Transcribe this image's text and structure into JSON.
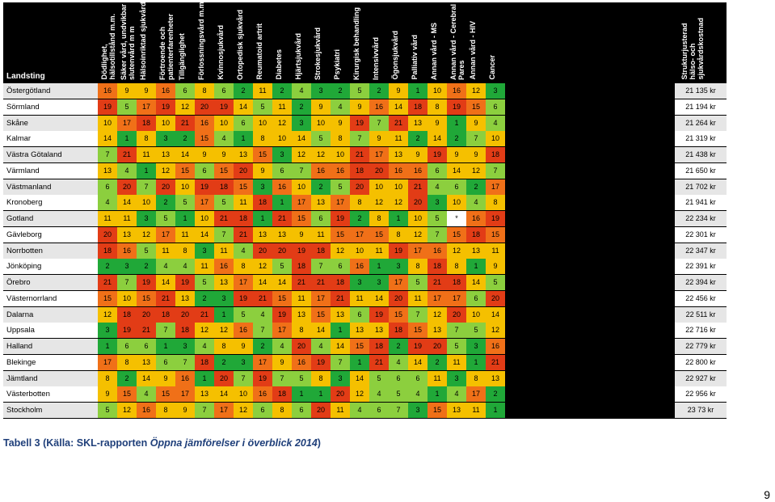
{
  "colors": {
    "1": "#20a838",
    "2": "#8ccf3e",
    "3": "#f5c000",
    "4": "#f07018",
    "5": "#e23c16",
    "white": "#ffffff"
  },
  "table": {
    "row_header_label": "Landsting",
    "column_headers": [
      "Dödlighet,\nhälsotillstånd m.m.",
      "Säker vård, undvikbar\nslutenvård m m",
      "Hälsoinriktad sjukvård",
      "Förtroende och\npatienterfarenheter",
      "Tillgänglighet",
      "Förlossningsvård m.m.",
      "Kvinnosjukvård",
      "Ortopedisk sjukvård",
      "Reumatoid artrit",
      "Diabetes",
      "Hjärtsjukvård",
      "Strokesjukvård",
      "Psykiatri",
      "Kirurgisk behandling",
      "Intensivvård",
      "Ögonsjukvård",
      "Palliativ vård",
      "Annan vård - MS",
      "Annan vård - Cerebral\nPares",
      "Annan vård - HIV",
      "Cancer",
      "Strukturjusterad\nhälso- och\nsjukvårdskostnad"
    ],
    "rows": [
      {
        "name": "Östergötland",
        "values": [
          "16",
          "9",
          "9",
          "16",
          "6",
          "8",
          "6",
          "2",
          "11",
          "2",
          "4",
          "3",
          "2",
          "5",
          "2",
          "9",
          "1",
          "10",
          "16",
          "12",
          "3"
        ],
        "cost": "21 135 kr"
      },
      {
        "name": "Sörmland",
        "values": [
          "19",
          "5",
          "17",
          "19",
          "12",
          "20",
          "19",
          "14",
          "5",
          "11",
          "2",
          "9",
          "4",
          "9",
          "16",
          "14",
          "18",
          "8",
          "19",
          "15",
          "6"
        ],
        "cost": "21 194 kr"
      },
      {
        "name": "Skåne",
        "values": [
          "10",
          "17",
          "18",
          "10",
          "21",
          "16",
          "10",
          "6",
          "10",
          "12",
          "3",
          "10",
          "9",
          "19",
          "7",
          "21",
          "13",
          "9",
          "1",
          "9",
          "4"
        ],
        "cost": "21 264 kr"
      },
      {
        "name": "Kalmar",
        "values": [
          "14",
          "1",
          "8",
          "3",
          "2",
          "15",
          "4",
          "1",
          "8",
          "10",
          "14",
          "5",
          "8",
          "7",
          "9",
          "11",
          "2",
          "14",
          "2",
          "7",
          "10"
        ],
        "cost": "21 319 kr"
      },
      {
        "name": "Västra Götaland",
        "values": [
          "7",
          "21",
          "11",
          "13",
          "14",
          "9",
          "9",
          "13",
          "15",
          "3",
          "12",
          "12",
          "10",
          "21",
          "17",
          "13",
          "9",
          "19",
          "9",
          "9",
          "18"
        ],
        "cost": "21 438 kr"
      },
      {
        "name": "Värmland",
        "values": [
          "13",
          "4",
          "1",
          "12",
          "15",
          "6",
          "15",
          "20",
          "9",
          "6",
          "7",
          "16",
          "16",
          "18",
          "20",
          "16",
          "16",
          "6",
          "14",
          "12",
          "7"
        ],
        "cost": "21 650 kr"
      },
      {
        "name": "Västmanland",
        "values": [
          "6",
          "20",
          "7",
          "20",
          "10",
          "19",
          "18",
          "15",
          "3",
          "16",
          "10",
          "2",
          "5",
          "20",
          "10",
          "10",
          "21",
          "4",
          "6",
          "2",
          "17"
        ],
        "cost": "21 702 kr"
      },
      {
        "name": "Kronoberg",
        "values": [
          "4",
          "14",
          "10",
          "2",
          "5",
          "17",
          "5",
          "11",
          "18",
          "1",
          "17",
          "13",
          "17",
          "8",
          "12",
          "12",
          "20",
          "3",
          "10",
          "4",
          "8"
        ],
        "cost": "21 941 kr"
      },
      {
        "name": "Gotland",
        "values": [
          "11",
          "11",
          "3",
          "5",
          "1",
          "10",
          "21",
          "18",
          "1",
          "21",
          "15",
          "6",
          "19",
          "2",
          "8",
          "1",
          "10",
          "5",
          "*",
          "16",
          "19"
        ],
        "cost": "22 234 kr"
      },
      {
        "name": "Gävleborg",
        "values": [
          "20",
          "13",
          "12",
          "17",
          "11",
          "14",
          "7",
          "21",
          "13",
          "13",
          "9",
          "11",
          "15",
          "17",
          "15",
          "8",
          "12",
          "7",
          "15",
          "18",
          "15"
        ],
        "cost": "22 301 kr"
      },
      {
        "name": "Norrbotten",
        "values": [
          "18",
          "16",
          "5",
          "11",
          "8",
          "3",
          "11",
          "4",
          "20",
          "20",
          "19",
          "18",
          "12",
          "10",
          "11",
          "19",
          "17",
          "16",
          "12",
          "13",
          "11"
        ],
        "cost": "22 347 kr"
      },
      {
        "name": "Jönköping",
        "values": [
          "2",
          "3",
          "2",
          "4",
          "4",
          "11",
          "16",
          "8",
          "12",
          "5",
          "18",
          "7",
          "6",
          "16",
          "1",
          "3",
          "8",
          "18",
          "8",
          "1",
          "9"
        ],
        "cost": "22 391 kr"
      },
      {
        "name": "Örebro",
        "values": [
          "21",
          "7",
          "19",
          "14",
          "19",
          "5",
          "13",
          "17",
          "14",
          "14",
          "21",
          "21",
          "18",
          "3",
          "3",
          "17",
          "5",
          "21",
          "18",
          "14",
          "5"
        ],
        "cost": "22 394 kr"
      },
      {
        "name": "Västernorrland",
        "values": [
          "15",
          "10",
          "15",
          "21",
          "13",
          "2",
          "3",
          "19",
          "21",
          "15",
          "11",
          "17",
          "21",
          "11",
          "14",
          "20",
          "11",
          "17",
          "17",
          "6",
          "20"
        ],
        "cost": "22 456 kr"
      },
      {
        "name": "Dalarna",
        "values": [
          "12",
          "18",
          "20",
          "18",
          "20",
          "21",
          "1",
          "5",
          "4",
          "19",
          "13",
          "15",
          "13",
          "6",
          "19",
          "15",
          "7",
          "12",
          "20",
          "10",
          "14"
        ],
        "cost": "22 511 kr"
      },
      {
        "name": "Uppsala",
        "values": [
          "3",
          "19",
          "21",
          "7",
          "18",
          "12",
          "12",
          "16",
          "7",
          "17",
          "8",
          "14",
          "1",
          "13",
          "13",
          "18",
          "15",
          "13",
          "7",
          "5",
          "12"
        ],
        "cost": "22 716 kr"
      },
      {
        "name": "Halland",
        "values": [
          "1",
          "6",
          "6",
          "1",
          "3",
          "4",
          "8",
          "9",
          "2",
          "4",
          "20",
          "4",
          "14",
          "15",
          "18",
          "2",
          "19",
          "20",
          "5",
          "3",
          "16"
        ],
        "cost": "22 779 kr"
      },
      {
        "name": "Blekinge",
        "values": [
          "17",
          "8",
          "13",
          "6",
          "7",
          "18",
          "2",
          "3",
          "17",
          "9",
          "16",
          "19",
          "7",
          "1",
          "21",
          "4",
          "14",
          "2",
          "11",
          "1",
          "21"
        ],
        "cost": "22 800 kr"
      },
      {
        "name": "Jämtland",
        "values": [
          "8",
          "2",
          "14",
          "9",
          "16",
          "1",
          "20",
          "7",
          "19",
          "7",
          "5",
          "8",
          "3",
          "14",
          "5",
          "6",
          "6",
          "11",
          "3",
          "8",
          "13"
        ],
        "cost": "22 927 kr"
      },
      {
        "name": "Västerbotten",
        "values": [
          "9",
          "15",
          "4",
          "15",
          "17",
          "13",
          "14",
          "10",
          "16",
          "18",
          "1",
          "1",
          "20",
          "12",
          "4",
          "5",
          "4",
          "1",
          "4",
          "17",
          "2"
        ],
        "cost": "22 956 kr"
      },
      {
        "name": "Stockholm",
        "values": [
          "5",
          "12",
          "16",
          "8",
          "9",
          "7",
          "17",
          "12",
          "6",
          "8",
          "6",
          "20",
          "11",
          "4",
          "6",
          "7",
          "3",
          "15",
          "13",
          "11",
          "1"
        ],
        "cost": "23 73 kr"
      }
    ]
  },
  "caption": {
    "prefix": "Tabell 3 (Källa: SKL-rapporten ",
    "italic": "Öppna jämförelser i överblick 2014",
    "suffix": ")"
  },
  "page_number": "9"
}
